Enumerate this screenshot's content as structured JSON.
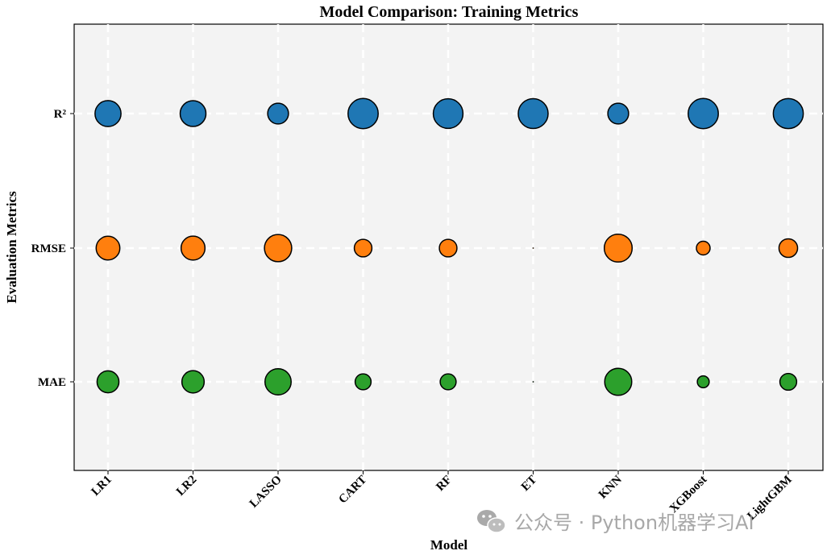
{
  "chart_data": {
    "type": "scatter",
    "title": "Model Comparison: Training Metrics",
    "xlabel": "Model",
    "ylabel": "Evaluation Metrics",
    "categories": [
      "LR1",
      "LR2",
      "LASSO",
      "CART",
      "RF",
      "ET",
      "KNN",
      "XGBoost",
      "LightGBM"
    ],
    "metrics": [
      "R²",
      "RMSE",
      "MAE"
    ],
    "grid": true,
    "series": [
      {
        "name": "R²",
        "color": "#1f77b4",
        "values": [
          0.72,
          0.71,
          0.46,
          0.97,
          0.94,
          0.95,
          0.46,
          0.97,
          0.96
        ]
      },
      {
        "name": "RMSE",
        "color": "#ff7f0e",
        "values": [
          0.6,
          0.61,
          0.79,
          0.33,
          0.33,
          0.0,
          0.83,
          0.2,
          0.37
        ]
      },
      {
        "name": "MAE",
        "color": "#2ca02c",
        "values": [
          0.51,
          0.53,
          0.73,
          0.27,
          0.27,
          0.0,
          0.78,
          0.15,
          0.3
        ]
      }
    ]
  },
  "watermark": {
    "text": "公众号 · Python机器学习AI",
    "icon": "wechat-icon"
  }
}
